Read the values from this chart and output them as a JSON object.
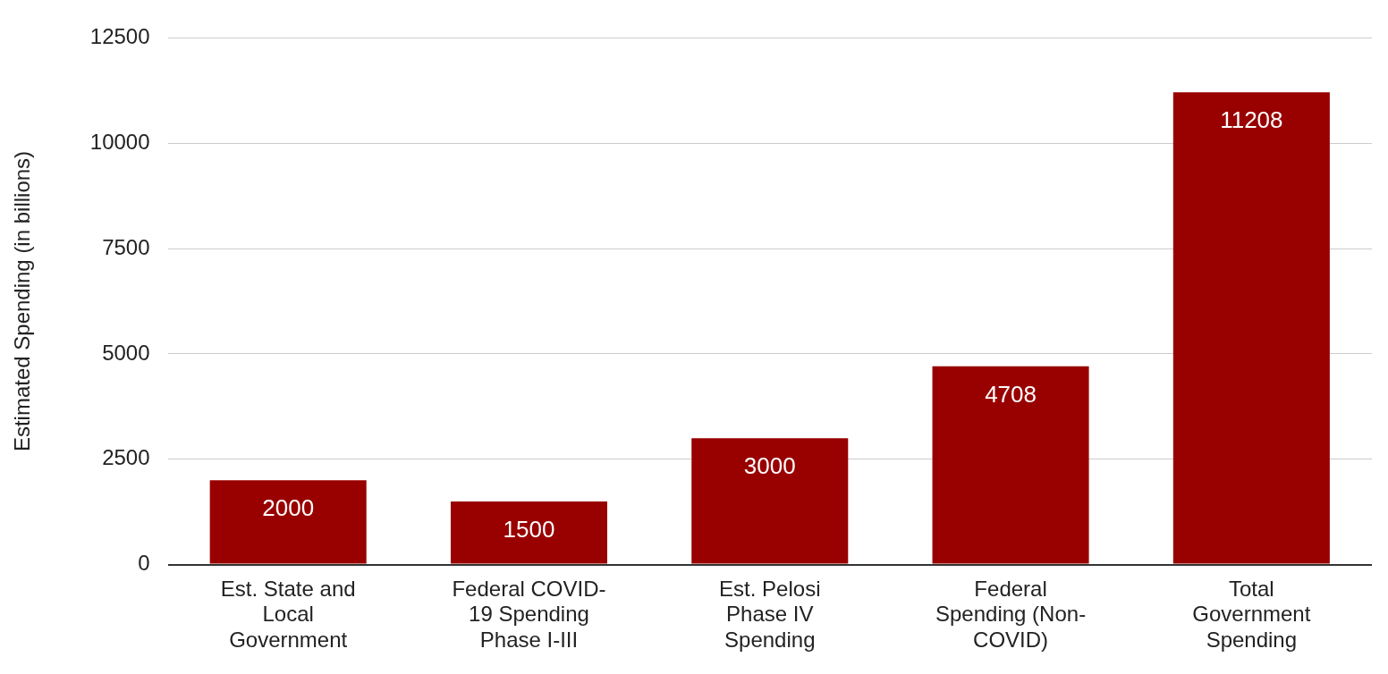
{
  "chart_data": {
    "type": "bar",
    "ylabel": "Estimated Spending (in billions)",
    "categories": [
      "Est. State and Local Government",
      "Federal COVID-19 Spending Phase I-III",
      "Est. Pelosi Phase IV Spending",
      "Federal Spending (Non-COVID)",
      "Total Government Spending"
    ],
    "values": [
      2000,
      1500,
      3000,
      4708,
      11208
    ],
    "color": "#990000",
    "ylim": [
      0,
      12500
    ],
    "yticks": [
      0,
      2500,
      5000,
      7500,
      10000,
      12500
    ],
    "grid": "y",
    "legend": false,
    "data_labels": true
  }
}
